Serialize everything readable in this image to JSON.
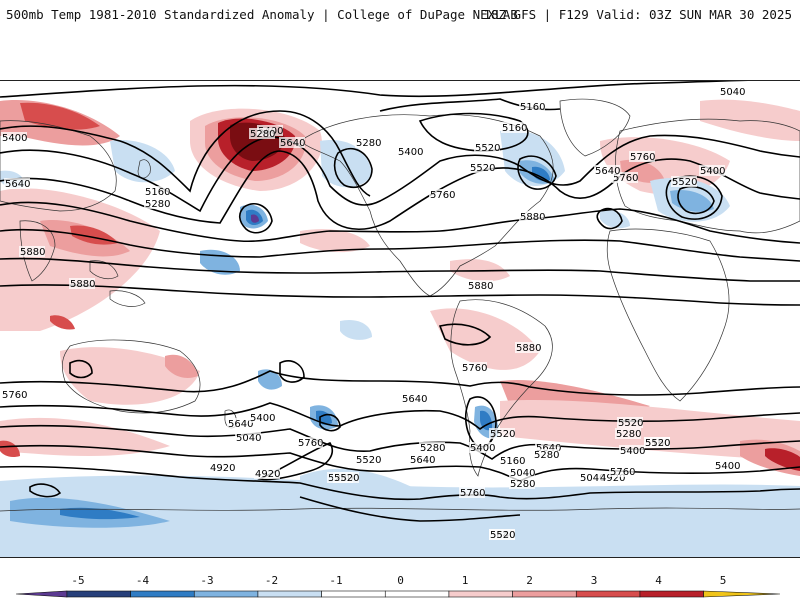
{
  "header": {
    "left_title": "500mb Temp 1981-2010 Standardized Anomaly | College of DuPage NEXLAB",
    "right_title": "18Z GFS | F129 Valid: 03Z SUN MAR 30 2025"
  },
  "colors": {
    "neg5": "#5c3a92",
    "neg4": "#273f7a",
    "neg3": "#2f7cc4",
    "neg2": "#7fb3e0",
    "neg1": "#c9dff2",
    "zero": "#ffffff",
    "pos1": "#f6cccc",
    "pos2": "#ec9e9e",
    "pos3": "#d74d4d",
    "pos4": "#b8202a",
    "pos5": "#7a0d12",
    "pos6": "#f0c419"
  },
  "colorbar": {
    "ticks": [
      "-5",
      "-4",
      "-3",
      "-2",
      "-1",
      "0",
      "1",
      "2",
      "3",
      "4",
      "5"
    ]
  },
  "contour_labels": [
    "5040",
    "5160",
    "5160",
    "5280",
    "5400",
    "5400",
    "5520",
    "5640",
    "5400",
    "5280",
    "5520",
    "5760",
    "5520",
    "5640",
    "5760",
    "5400",
    "5640",
    "5160",
    "5280",
    "5760",
    "5880",
    "5880",
    "5880",
    "5880",
    "5880",
    "5760",
    "5760",
    "5640",
    "5520",
    "5280",
    "5160",
    "5040",
    "4920",
    "5760",
    "5400",
    "5520",
    "5640",
    "5280",
    "5160",
    "5040",
    "5280",
    "5400",
    "5520",
    "5640",
    "5760",
    "5040",
    "4920",
    "4920",
    "5760",
    "5640",
    "5520",
    "5400",
    "5280",
    "5400",
    "5520",
    "5640",
    "5280",
    "5520"
  ]
}
